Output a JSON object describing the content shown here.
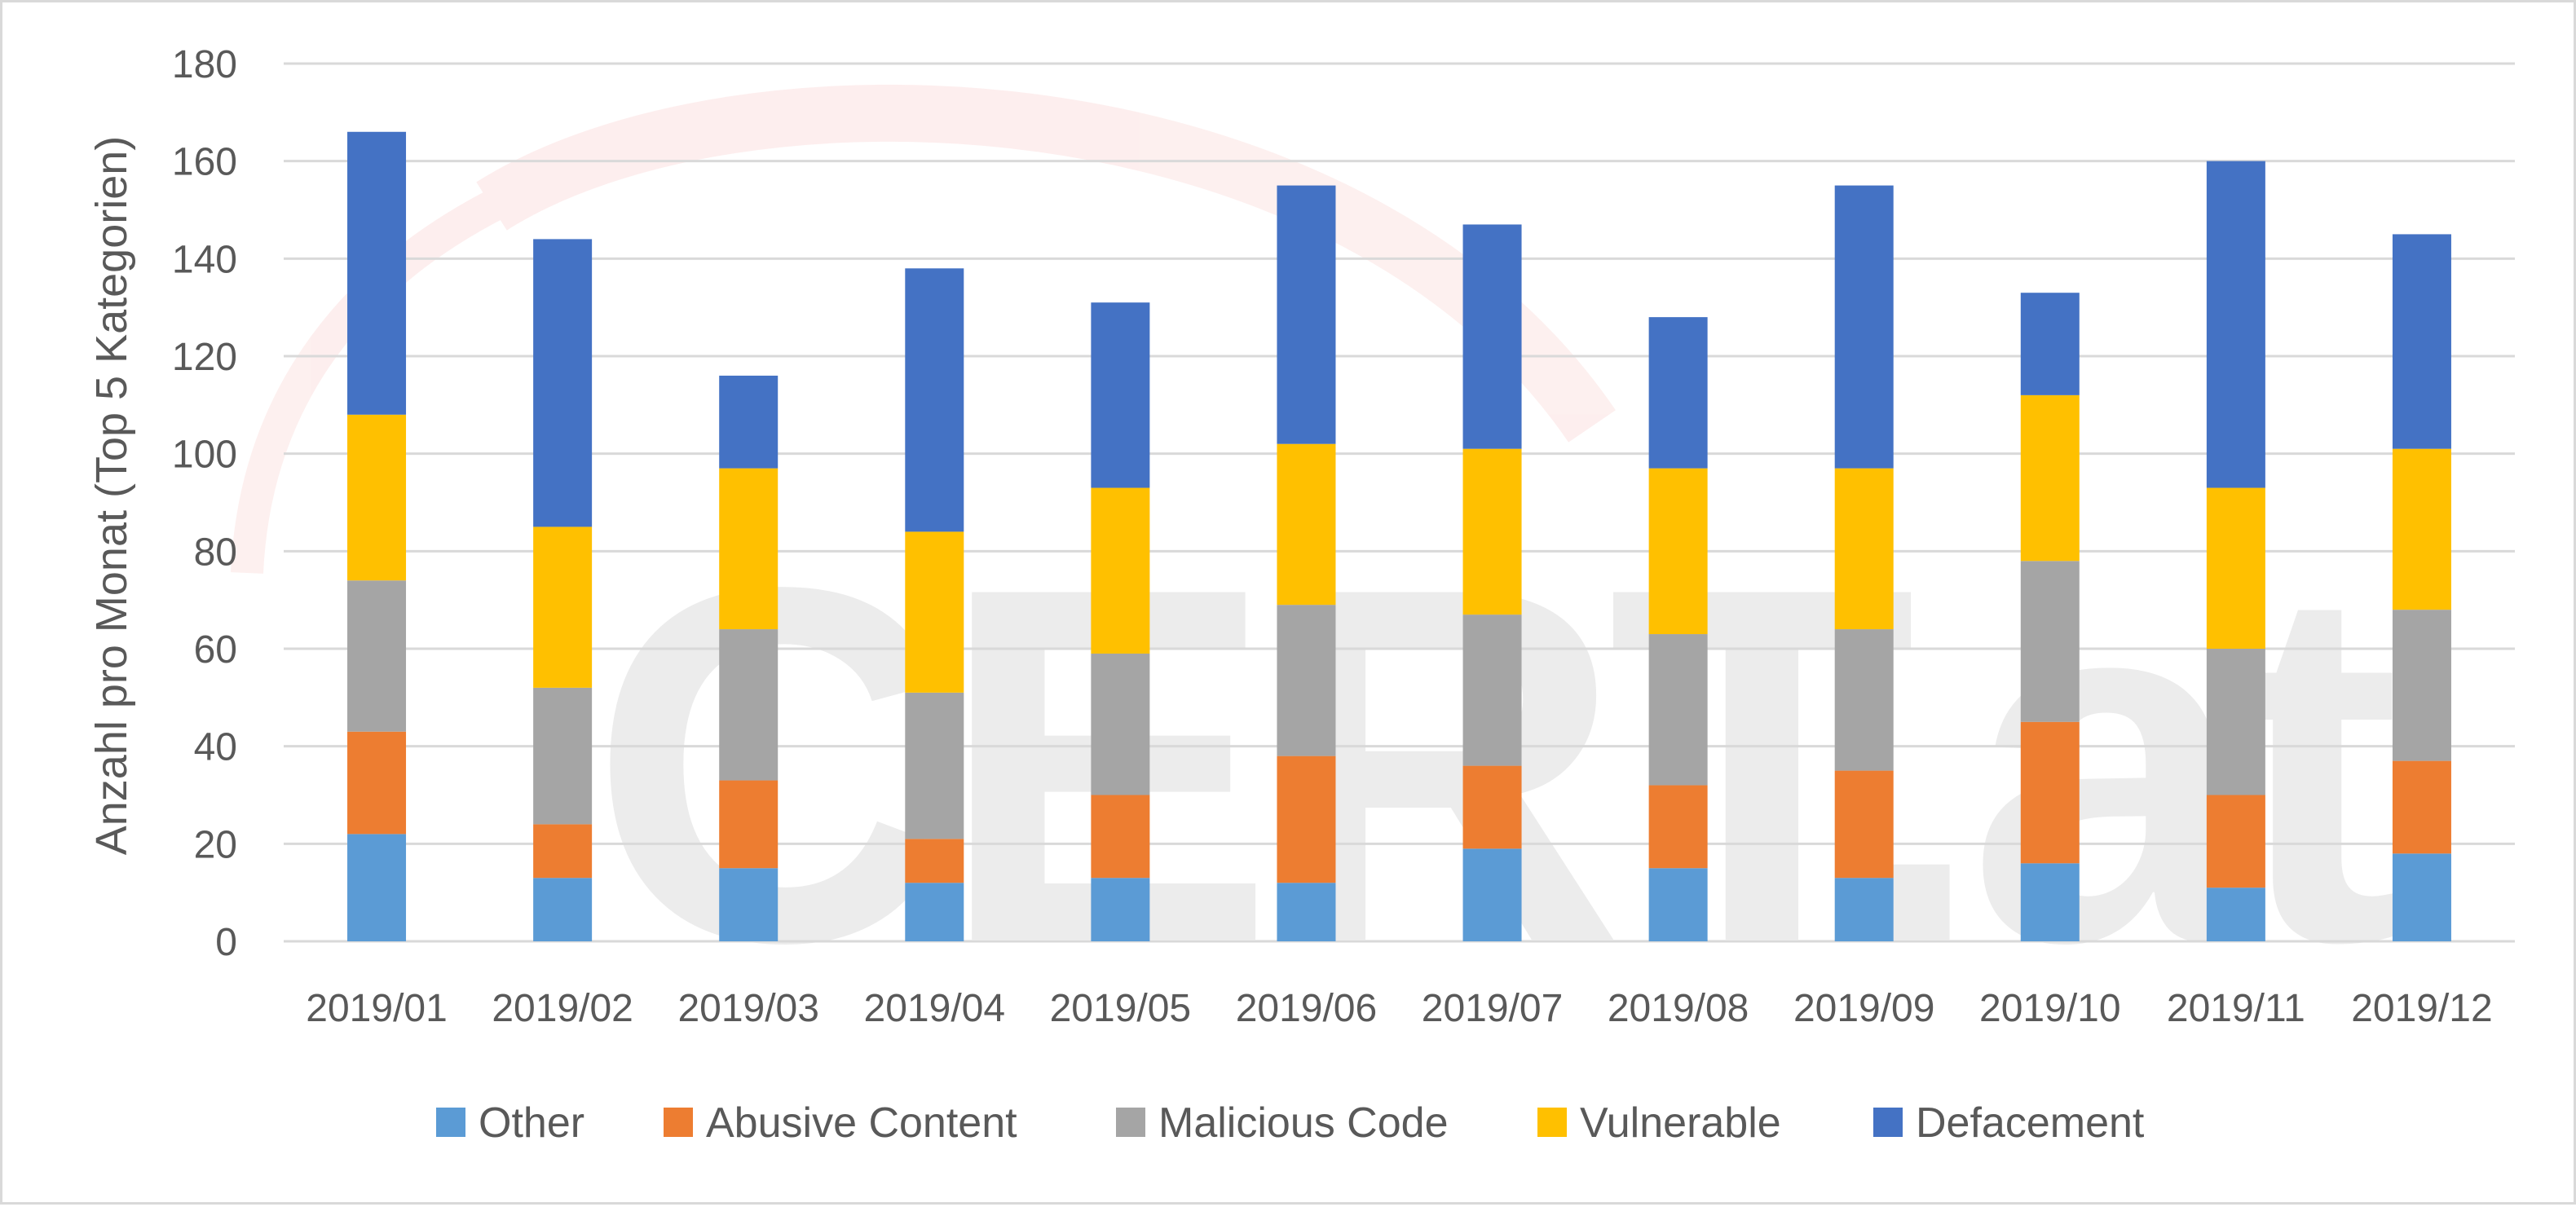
{
  "chart_data": {
    "type": "bar",
    "stacked": true,
    "watermark_logo": "CERT.at",
    "title": "",
    "xlabel": "",
    "ylabel": "Anzahl pro Monat (Top 5 Kategorien)",
    "ylim": [
      0,
      180
    ],
    "yticks": [
      0,
      20,
      40,
      60,
      80,
      100,
      120,
      140,
      160,
      180
    ],
    "grid": true,
    "legend_position": "bottom",
    "categories": [
      "2019/01",
      "2019/02",
      "2019/03",
      "2019/04",
      "2019/05",
      "2019/06",
      "2019/07",
      "2019/08",
      "2019/09",
      "2019/10",
      "2019/11",
      "2019/12"
    ],
    "series": [
      {
        "name": "Other",
        "color": "#5b9bd5",
        "values": [
          22,
          13,
          15,
          12,
          13,
          12,
          19,
          15,
          13,
          16,
          11,
          18
        ]
      },
      {
        "name": "Abusive Content",
        "color": "#ed7d31",
        "values": [
          21,
          11,
          18,
          9,
          17,
          26,
          17,
          17,
          22,
          29,
          19,
          19
        ]
      },
      {
        "name": "Malicious Code",
        "color": "#a5a5a5",
        "values": [
          31,
          28,
          31,
          30,
          29,
          31,
          31,
          31,
          29,
          33,
          30,
          31
        ]
      },
      {
        "name": "Vulnerable",
        "color": "#ffc000",
        "values": [
          34,
          33,
          33,
          33,
          34,
          33,
          34,
          34,
          33,
          34,
          33,
          33
        ]
      },
      {
        "name": "Defacement",
        "color": "#4472c4",
        "values": [
          58,
          59,
          19,
          54,
          38,
          53,
          46,
          31,
          58,
          21,
          67,
          44
        ]
      }
    ]
  }
}
